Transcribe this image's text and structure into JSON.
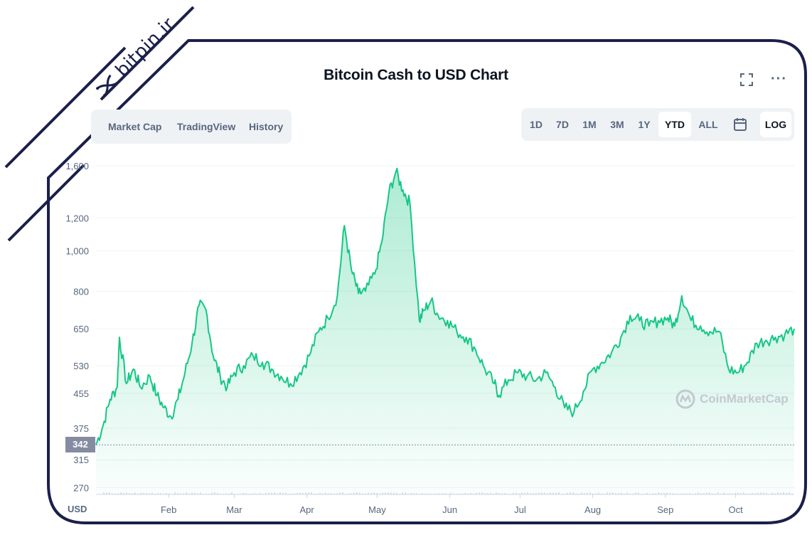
{
  "header": {
    "title": "Bitcoin Cash to USD Chart",
    "fullscreen_icon": "fullscreen-icon",
    "more_icon": "more-icon",
    "more_label": "···"
  },
  "view_tabs": [
    {
      "label": "Market Cap"
    },
    {
      "label": "TradingView"
    },
    {
      "label": "History"
    }
  ],
  "range_tabs": [
    {
      "label": "1D",
      "active": false
    },
    {
      "label": "7D",
      "active": false
    },
    {
      "label": "1M",
      "active": false
    },
    {
      "label": "3M",
      "active": false
    },
    {
      "label": "1Y",
      "active": false
    },
    {
      "label": "YTD",
      "active": true
    },
    {
      "label": "ALL",
      "active": false
    }
  ],
  "calendar_icon": "calendar-icon",
  "log_label": "LOG",
  "current_price_tag": "342",
  "watermark": {
    "text": "CoinMarketCap",
    "icon": "coinmarketcap-logo-icon"
  },
  "bitpin": {
    "text": "bitpin.ir",
    "icon": "bitpin-logo-icon"
  },
  "colors": {
    "line": "#16c784",
    "area_top": "#16c784",
    "frame": "#1b1f4b",
    "grid": "#eff2f5",
    "axis_text": "#58667e"
  },
  "chart_data": {
    "type": "area",
    "title": "Bitcoin Cash to USD Chart",
    "currency_label": "USD",
    "y_scale": "log",
    "ylim": [
      260,
      1620
    ],
    "y_ticks": [
      "1,600",
      "1,200",
      "1,000",
      "800",
      "650",
      "530",
      "455",
      "375",
      "315",
      "270"
    ],
    "x_ticks": [
      "Feb",
      "Mar",
      "Apr",
      "May",
      "Jun",
      "Jul",
      "Aug",
      "Sep",
      "Oct"
    ],
    "grid": true,
    "x_range": [
      "2021-01-01",
      "2021-10-26"
    ],
    "reference_price": 342,
    "series": [
      {
        "x": [
          "2021-01-01",
          "2021-01-04",
          "2021-01-07",
          "2021-01-10",
          "2021-01-11",
          "2021-01-14",
          "2021-01-17",
          "2021-01-20",
          "2021-01-24",
          "2021-01-27",
          "2021-01-30",
          "2021-02-02",
          "2021-02-05",
          "2021-02-08",
          "2021-02-11",
          "2021-02-14",
          "2021-02-17",
          "2021-02-20",
          "2021-02-23",
          "2021-02-26",
          "2021-03-01",
          "2021-03-05",
          "2021-03-09",
          "2021-03-13",
          "2021-03-17",
          "2021-03-21",
          "2021-03-25",
          "2021-03-29",
          "2021-04-02",
          "2021-04-06",
          "2021-04-10",
          "2021-04-14",
          "2021-04-17",
          "2021-04-20",
          "2021-04-23",
          "2021-04-26",
          "2021-04-30",
          "2021-05-03",
          "2021-05-06",
          "2021-05-09",
          "2021-05-12",
          "2021-05-15",
          "2021-05-19",
          "2021-05-21",
          "2021-05-24",
          "2021-05-27",
          "2021-05-31",
          "2021-06-04",
          "2021-06-08",
          "2021-06-12",
          "2021-06-16",
          "2021-06-20",
          "2021-06-22",
          "2021-06-26",
          "2021-06-30",
          "2021-07-04",
          "2021-07-08",
          "2021-07-12",
          "2021-07-16",
          "2021-07-20",
          "2021-07-24",
          "2021-07-28",
          "2021-08-01",
          "2021-08-05",
          "2021-08-09",
          "2021-08-13",
          "2021-08-17",
          "2021-08-21",
          "2021-08-25",
          "2021-08-29",
          "2021-09-02",
          "2021-09-05",
          "2021-09-08",
          "2021-09-12",
          "2021-09-16",
          "2021-09-20",
          "2021-09-24",
          "2021-09-28",
          "2021-10-02",
          "2021-10-06",
          "2021-10-10",
          "2021-10-14",
          "2021-10-18",
          "2021-10-22",
          "2021-10-26"
        ],
        "y": [
          342,
          380,
          440,
          470,
          620,
          480,
          520,
          470,
          500,
          450,
          420,
          400,
          440,
          510,
          600,
          740,
          720,
          560,
          500,
          470,
          510,
          530,
          560,
          540,
          520,
          500,
          480,
          510,
          560,
          640,
          690,
          780,
          1150,
          900,
          790,
          800,
          880,
          1050,
          1380,
          1550,
          1400,
          1300,
          680,
          720,
          760,
          700,
          680,
          640,
          620,
          580,
          520,
          480,
          450,
          490,
          510,
          500,
          490,
          510,
          470,
          420,
          410,
          460,
          520,
          540,
          570,
          620,
          700,
          680,
          660,
          680,
          690,
          660,
          780,
          680,
          660,
          640,
          640,
          520,
          510,
          540,
          600,
          610,
          620,
          630,
          650
        ]
      }
    ]
  }
}
